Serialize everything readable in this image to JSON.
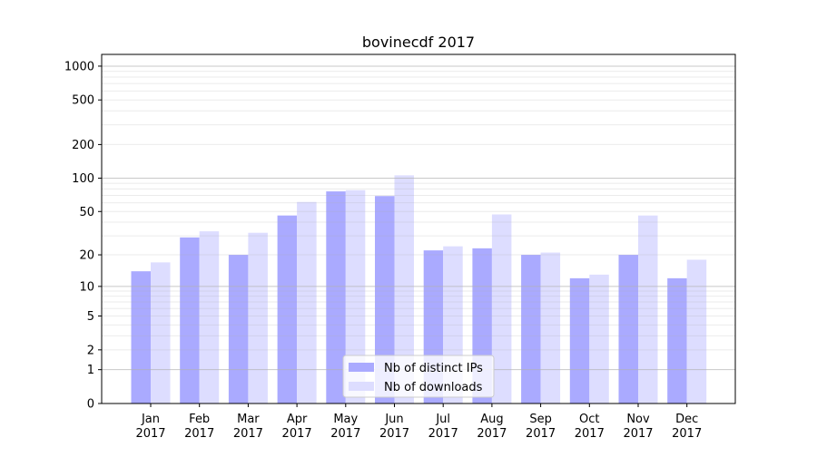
{
  "chart_data": {
    "type": "bar",
    "title": "bovinecdf 2017",
    "xlabel": "",
    "ylabel": "",
    "yscale": "log(1+y)",
    "ylim": [
      0,
      1200
    ],
    "yticks": [
      0,
      1,
      2,
      5,
      10,
      20,
      50,
      100,
      200,
      500,
      1000
    ],
    "categories": [
      "Jan\n2017",
      "Feb\n2017",
      "Mar\n2017",
      "Apr\n2017",
      "May\n2017",
      "Jun\n2017",
      "Jul\n2017",
      "Aug\n2017",
      "Sep\n2017",
      "Oct\n2017",
      "Nov\n2017",
      "Dec\n2017"
    ],
    "series": [
      {
        "name": "Nb of distinct IPs",
        "color": "#aaaaff",
        "values": [
          14,
          29,
          20,
          46,
          76,
          69,
          22,
          23,
          20,
          12,
          20,
          12
        ]
      },
      {
        "name": "Nb of downloads",
        "color": "#ddddff",
        "values": [
          17,
          33,
          32,
          61,
          78,
          106,
          24,
          47,
          21,
          13,
          46,
          18
        ]
      }
    ],
    "legend": "bottom-center",
    "grid": true
  }
}
